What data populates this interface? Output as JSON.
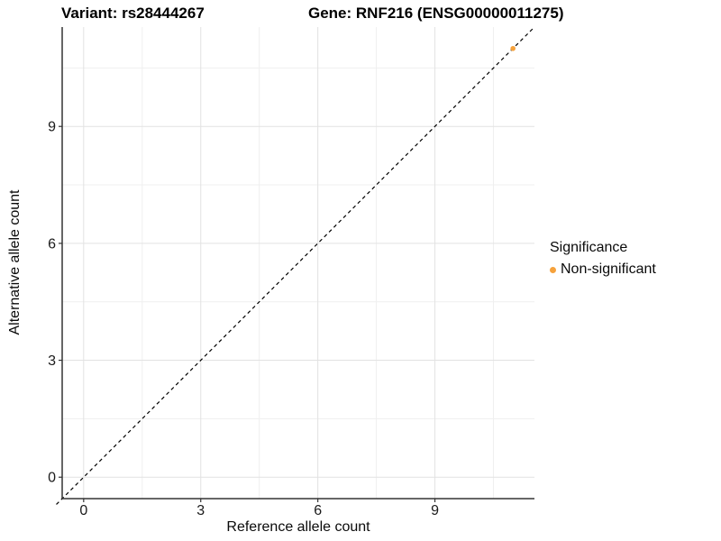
{
  "header": {
    "variant_title": "Variant: rs28444267",
    "gene_title": "Gene: RNF216 (ENSG00000011275)"
  },
  "chart_data": {
    "type": "scatter",
    "title_left": "Variant: rs28444267",
    "title_right": "Gene: RNF216 (ENSG00000011275)",
    "xlabel": "Reference allele count",
    "ylabel": "Alternative allele count",
    "xlim": [
      -0.55,
      11.55
    ],
    "ylim": [
      -0.55,
      11.55
    ],
    "x_ticks": [
      0,
      3,
      6,
      9
    ],
    "y_ticks": [
      0,
      3,
      6,
      9
    ],
    "x_minor_gridlines": [
      1.5,
      4.5,
      7.5,
      10.5
    ],
    "y_minor_gridlines": [
      1.5,
      4.5,
      7.5,
      10.5
    ],
    "grid": true,
    "points": [
      {
        "x": 11,
        "y": 11,
        "series": "Non-significant"
      }
    ],
    "identity_line": {
      "slope": 1,
      "intercept": 0,
      "style": "dashed",
      "color": "#000000"
    },
    "legend": {
      "title": "Significance",
      "position": "right",
      "items": [
        {
          "label": "Non-significant",
          "color": "#F6A23C"
        }
      ]
    },
    "colors": {
      "point": "#F6A23C",
      "major_grid": "#e2e2e2",
      "minor_grid": "#efefef",
      "axis_line": "#333333",
      "tick_text": "#1a1a1a"
    }
  }
}
